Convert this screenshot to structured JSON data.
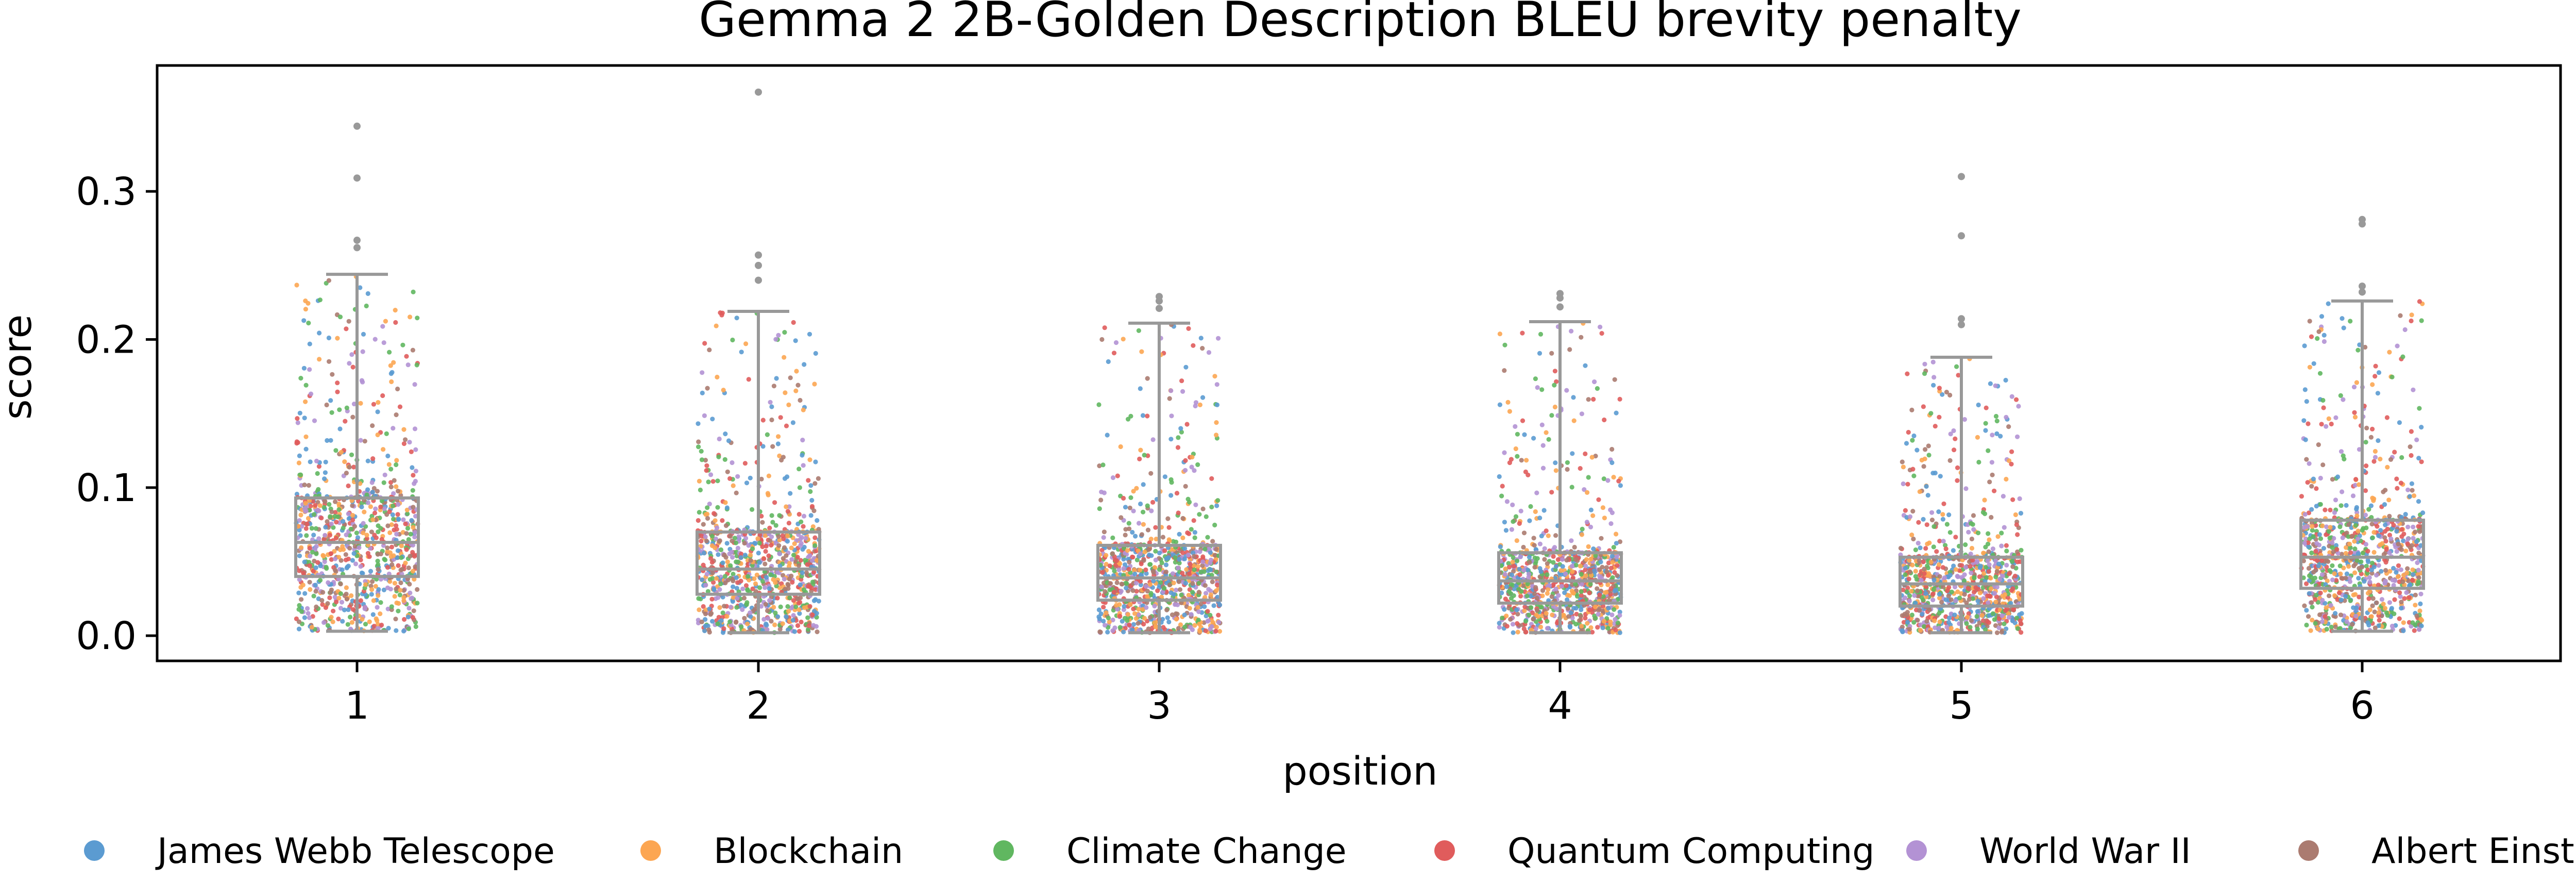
{
  "chart_data": {
    "type": "box",
    "title": "Gemma 2 2B-Golden Description BLEU brevity penalty",
    "xlabel": "position",
    "ylabel": "score",
    "categories": [
      "1",
      "2",
      "3",
      "4",
      "5",
      "6"
    ],
    "ylim": [
      -0.017,
      0.385
    ],
    "yticks": [
      0.0,
      0.1,
      0.2,
      0.3
    ],
    "ytick_labels": [
      "0.0",
      "0.1",
      "0.2",
      "0.3"
    ],
    "grid": false,
    "legend_position": "bottom",
    "box_color": "#999999",
    "boxes": [
      {
        "position": "1",
        "q1": 0.04,
        "median": 0.063,
        "q3": 0.093,
        "whisker_low": 0.003,
        "whisker_high": 0.244,
        "outliers": [
          0.262,
          0.267,
          0.309,
          0.344
        ]
      },
      {
        "position": "2",
        "q1": 0.028,
        "median": 0.045,
        "q3": 0.07,
        "whisker_low": 0.002,
        "whisker_high": 0.219,
        "outliers": [
          0.24,
          0.25,
          0.257,
          0.367
        ]
      },
      {
        "position": "3",
        "q1": 0.024,
        "median": 0.039,
        "q3": 0.061,
        "whisker_low": 0.002,
        "whisker_high": 0.211,
        "outliers": [
          0.221,
          0.226,
          0.229
        ]
      },
      {
        "position": "4",
        "q1": 0.022,
        "median": 0.037,
        "q3": 0.056,
        "whisker_low": 0.002,
        "whisker_high": 0.212,
        "outliers": [
          0.222,
          0.228,
          0.231
        ]
      },
      {
        "position": "5",
        "q1": 0.02,
        "median": 0.035,
        "q3": 0.053,
        "whisker_low": 0.002,
        "whisker_high": 0.188,
        "outliers": [
          0.21,
          0.214,
          0.27,
          0.31
        ]
      },
      {
        "position": "6",
        "q1": 0.032,
        "median": 0.053,
        "q3": 0.078,
        "whisker_low": 0.003,
        "whisker_high": 0.226,
        "outliers": [
          0.232,
          0.236,
          0.278,
          0.281
        ]
      }
    ],
    "series": [
      {
        "name": "James Webb Telescope",
        "color": "#5b9bd1"
      },
      {
        "name": "Blockchain",
        "color": "#fca652"
      },
      {
        "name": "Climate Change",
        "color": "#60b760"
      },
      {
        "name": "Quantum Computing",
        "color": "#e05c5c"
      },
      {
        "name": "World War II",
        "color": "#b392d4"
      },
      {
        "name": "Albert Einstein",
        "color": "#ab7b70"
      }
    ]
  }
}
